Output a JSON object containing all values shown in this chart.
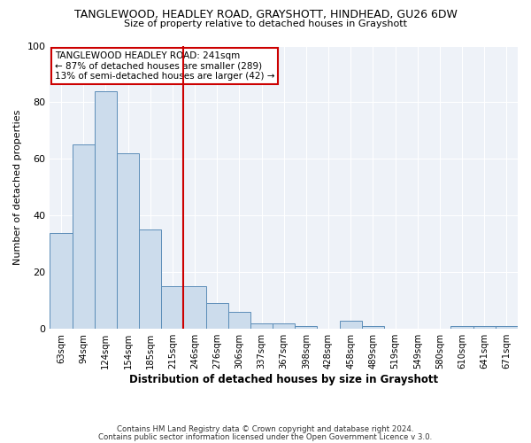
{
  "title": "TANGLEWOOD, HEADLEY ROAD, GRAYSHOTT, HINDHEAD, GU26 6DW",
  "subtitle": "Size of property relative to detached houses in Grayshott",
  "xlabel": "Distribution of detached houses by size in Grayshott",
  "ylabel": "Number of detached properties",
  "bar_labels": [
    "63sqm",
    "94sqm",
    "124sqm",
    "154sqm",
    "185sqm",
    "215sqm",
    "246sqm",
    "276sqm",
    "306sqm",
    "337sqm",
    "367sqm",
    "398sqm",
    "428sqm",
    "458sqm",
    "489sqm",
    "519sqm",
    "549sqm",
    "580sqm",
    "610sqm",
    "641sqm",
    "671sqm"
  ],
  "bar_values": [
    34,
    65,
    84,
    62,
    35,
    15,
    15,
    9,
    6,
    2,
    2,
    1,
    0,
    3,
    1,
    0,
    0,
    0,
    1,
    1,
    1
  ],
  "bar_color": "#ccdcec",
  "bar_edge_color": "#5b8db8",
  "vline_x": 5.5,
  "vline_color": "#cc0000",
  "annotation_title": "TANGLEWOOD HEADLEY ROAD: 241sqm",
  "annotation_line1": "← 87% of detached houses are smaller (289)",
  "annotation_line2": "13% of semi-detached houses are larger (42) →",
  "annotation_box_color": "#ffffff",
  "annotation_box_edge_color": "#cc0000",
  "ylim": [
    0,
    100
  ],
  "background_color": "#ffffff",
  "plot_background": "#eef2f8",
  "grid_color": "#ffffff",
  "footer1": "Contains HM Land Registry data © Crown copyright and database right 2024.",
  "footer2": "Contains public sector information licensed under the Open Government Licence v 3.0."
}
